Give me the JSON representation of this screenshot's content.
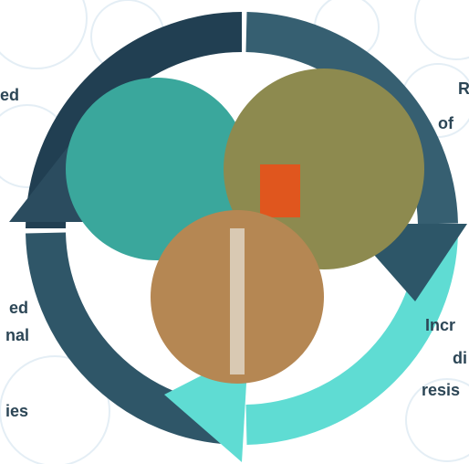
{
  "labels": [
    "ed",
    "R",
    "of",
    "ed",
    "nal",
    "ies",
    "Incr",
    "di",
    "resis"
  ]
}
